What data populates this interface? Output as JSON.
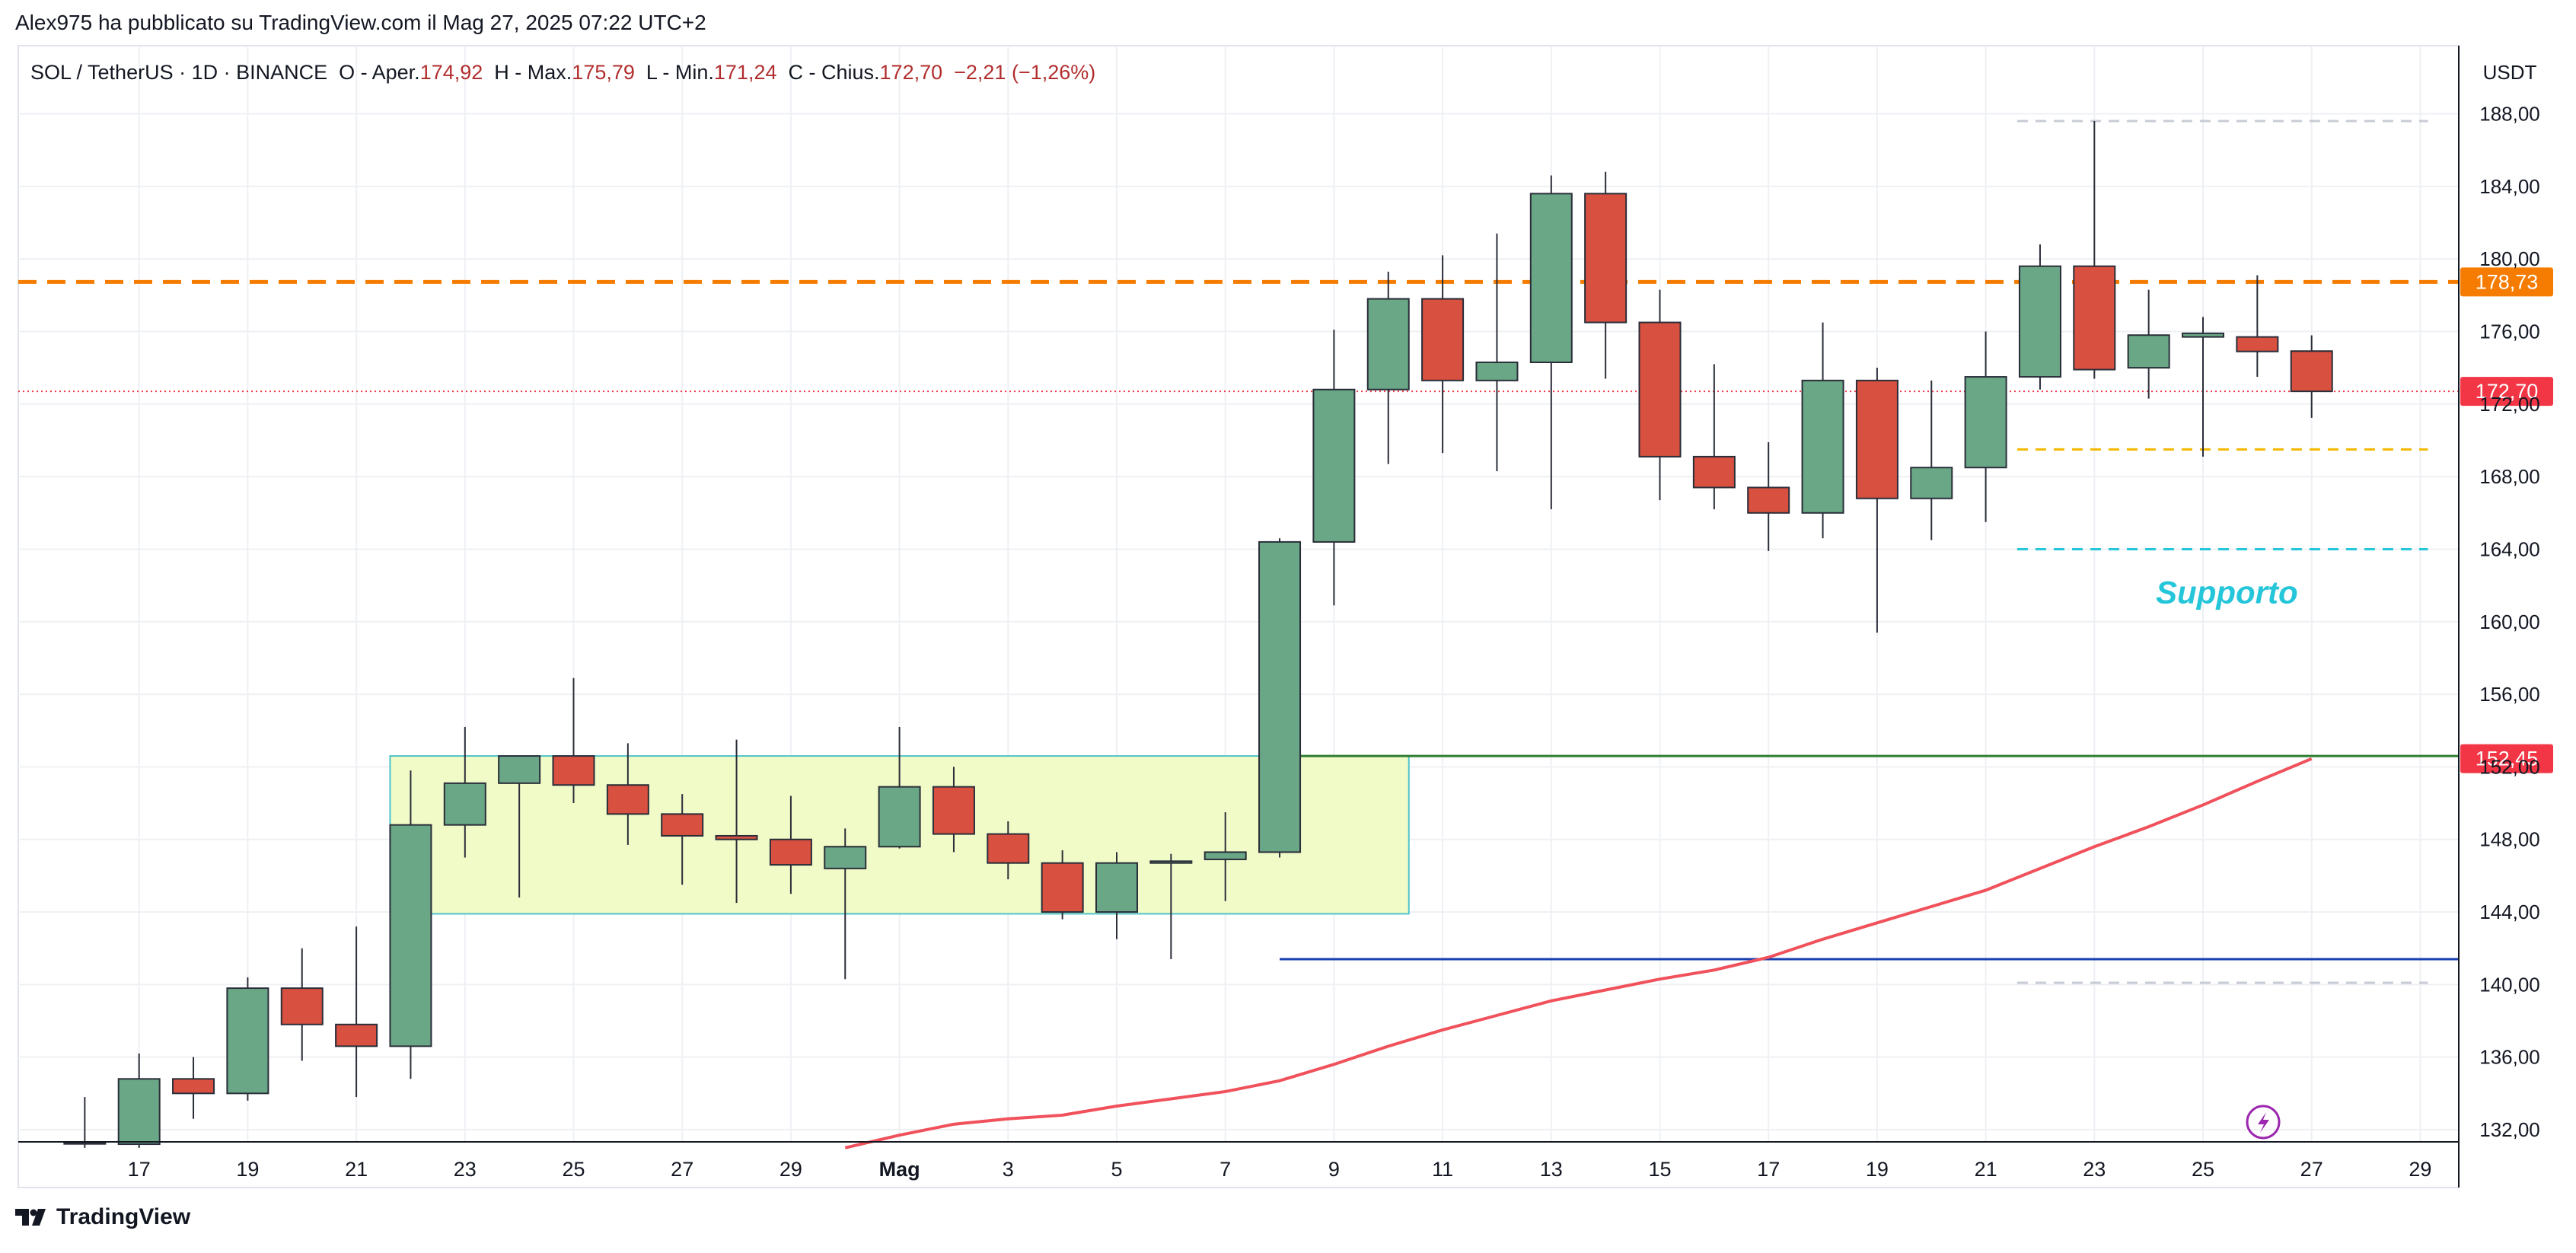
{
  "caption": "Alex975 ha pubblicato su TradingView.com il Mag 27, 2025 07:22 UTC+2",
  "legend": {
    "symbol": "SOL / TetherUS · 1D · BINANCE",
    "o_label": "O - Aper.",
    "o_value": "174,92",
    "h_label": "H - Max.",
    "h_value": "175,79",
    "l_label": "L - Min.",
    "l_value": "171,24",
    "c_label": "C - Chius.",
    "c_value": "172,70",
    "change": "−2,21 (−1,26%)"
  },
  "currency": "USDT",
  "brand": "TradingView",
  "colors": {
    "up": "#6aa786",
    "down": "#d85040",
    "resistance": "#f57c00",
    "last_price": "#f23645",
    "ma": "#f0515b",
    "support_text": "#26c6da",
    "blue_line": "#1a3fb0",
    "green_line": "#2e7d32",
    "range_box_fill": "#f1fbc8",
    "range_box_border": "#4fc3c9"
  },
  "chart_data": {
    "type": "candlestick",
    "ylim": [
      131,
      191
    ],
    "y_ticks": [
      "188,00",
      "184,00",
      "180,00",
      "176,00",
      "172,00",
      "168,00",
      "164,00",
      "160,00",
      "156,00",
      "152,00",
      "148,00",
      "144,00",
      "140,00",
      "136,00",
      "132,00"
    ],
    "x_ticks": [
      "17",
      "19",
      "21",
      "23",
      "25",
      "27",
      "29",
      "Mag",
      "3",
      "5",
      "7",
      "9",
      "11",
      "13",
      "15",
      "17",
      "19",
      "21",
      "23",
      "25",
      "27",
      "29"
    ],
    "candles": [
      {
        "date": "Apr 16",
        "o": 131.3,
        "h": 133.8,
        "l": 131.0,
        "c": 131.3
      },
      {
        "date": "Apr 17",
        "o": 131.2,
        "h": 136.2,
        "l": 131.0,
        "c": 134.8
      },
      {
        "date": "Apr 18",
        "o": 134.8,
        "h": 136.0,
        "l": 132.6,
        "c": 134.0
      },
      {
        "date": "Apr 19",
        "o": 134.0,
        "h": 140.4,
        "l": 133.6,
        "c": 139.8
      },
      {
        "date": "Apr 20",
        "o": 139.8,
        "h": 142.0,
        "l": 135.8,
        "c": 137.8
      },
      {
        "date": "Apr 21",
        "o": 137.8,
        "h": 143.2,
        "l": 133.8,
        "c": 136.6
      },
      {
        "date": "Apr 22",
        "o": 136.6,
        "h": 151.8,
        "l": 134.8,
        "c": 148.8
      },
      {
        "date": "Apr 23",
        "o": 148.8,
        "h": 154.2,
        "l": 147.0,
        "c": 151.1
      },
      {
        "date": "Apr 24",
        "o": 151.1,
        "h": 152.6,
        "l": 144.8,
        "c": 152.6
      },
      {
        "date": "Apr 25",
        "o": 152.6,
        "h": 156.9,
        "l": 150.0,
        "c": 151.0
      },
      {
        "date": "Apr 26",
        "o": 151.0,
        "h": 153.3,
        "l": 147.7,
        "c": 149.4
      },
      {
        "date": "Apr 27",
        "o": 149.4,
        "h": 150.5,
        "l": 145.5,
        "c": 148.2
      },
      {
        "date": "Apr 28",
        "o": 148.2,
        "h": 153.5,
        "l": 144.5,
        "c": 148.0
      },
      {
        "date": "Apr 29",
        "o": 148.0,
        "h": 150.4,
        "l": 145.0,
        "c": 146.6
      },
      {
        "date": "Apr 30",
        "o": 146.4,
        "h": 148.6,
        "l": 140.3,
        "c": 147.6
      },
      {
        "date": "May 01",
        "o": 147.6,
        "h": 154.2,
        "l": 147.5,
        "c": 150.9
      },
      {
        "date": "May 02",
        "o": 150.9,
        "h": 152.0,
        "l": 147.3,
        "c": 148.3
      },
      {
        "date": "May 03",
        "o": 148.3,
        "h": 149.0,
        "l": 145.8,
        "c": 146.7
      },
      {
        "date": "May 04",
        "o": 146.7,
        "h": 147.4,
        "l": 143.6,
        "c": 144.0
      },
      {
        "date": "May 05",
        "o": 144.0,
        "h": 147.3,
        "l": 142.5,
        "c": 146.7
      },
      {
        "date": "May 06",
        "o": 146.7,
        "h": 147.2,
        "l": 141.4,
        "c": 146.8
      },
      {
        "date": "May 07",
        "o": 146.9,
        "h": 149.5,
        "l": 144.6,
        "c": 147.3
      },
      {
        "date": "May 08",
        "o": 147.3,
        "h": 164.6,
        "l": 147.0,
        "c": 164.4
      },
      {
        "date": "May 09",
        "o": 164.4,
        "h": 176.1,
        "l": 160.9,
        "c": 172.8
      },
      {
        "date": "May 10",
        "o": 172.8,
        "h": 179.3,
        "l": 168.7,
        "c": 177.8
      },
      {
        "date": "May 11",
        "o": 177.8,
        "h": 180.2,
        "l": 169.3,
        "c": 173.3
      },
      {
        "date": "May 12",
        "o": 173.3,
        "h": 181.4,
        "l": 168.3,
        "c": 174.3
      },
      {
        "date": "May 13",
        "o": 174.3,
        "h": 184.6,
        "l": 166.2,
        "c": 183.6
      },
      {
        "date": "May 14",
        "o": 183.6,
        "h": 184.8,
        "l": 173.4,
        "c": 176.5
      },
      {
        "date": "May 15",
        "o": 176.5,
        "h": 178.3,
        "l": 166.7,
        "c": 169.1
      },
      {
        "date": "May 16",
        "o": 169.1,
        "h": 174.2,
        "l": 166.2,
        "c": 167.4
      },
      {
        "date": "May 17",
        "o": 167.4,
        "h": 169.9,
        "l": 163.9,
        "c": 166.0
      },
      {
        "date": "May 18",
        "o": 166.0,
        "h": 176.5,
        "l": 164.6,
        "c": 173.3
      },
      {
        "date": "May 19",
        "o": 173.3,
        "h": 174.0,
        "l": 159.4,
        "c": 166.8
      },
      {
        "date": "May 20",
        "o": 166.8,
        "h": 173.3,
        "l": 164.5,
        "c": 168.5
      },
      {
        "date": "May 21",
        "o": 168.5,
        "h": 176.0,
        "l": 165.5,
        "c": 173.5
      },
      {
        "date": "May 22",
        "o": 173.5,
        "h": 180.8,
        "l": 172.8,
        "c": 179.6
      },
      {
        "date": "May 23",
        "o": 179.6,
        "h": 187.6,
        "l": 173.4,
        "c": 173.9
      },
      {
        "date": "May 24",
        "o": 174.0,
        "h": 178.3,
        "l": 172.3,
        "c": 175.8
      },
      {
        "date": "May 25",
        "o": 175.7,
        "h": 176.8,
        "l": 169.1,
        "c": 175.9
      },
      {
        "date": "May 26",
        "o": 175.7,
        "h": 179.1,
        "l": 173.5,
        "c": 174.9
      },
      {
        "date": "May 27",
        "o": 174.92,
        "h": 175.79,
        "l": 171.24,
        "c": 172.7
      }
    ],
    "moving_average": [
      {
        "date": "Apr 30",
        "v": 131.0
      },
      {
        "date": "May 01",
        "v": 131.7
      },
      {
        "date": "May 02",
        "v": 132.3
      },
      {
        "date": "May 03",
        "v": 132.6
      },
      {
        "date": "May 04",
        "v": 132.8
      },
      {
        "date": "May 05",
        "v": 133.3
      },
      {
        "date": "May 06",
        "v": 133.7
      },
      {
        "date": "May 07",
        "v": 134.1
      },
      {
        "date": "May 08",
        "v": 134.7
      },
      {
        "date": "May 09",
        "v": 135.6
      },
      {
        "date": "May 10",
        "v": 136.6
      },
      {
        "date": "May 11",
        "v": 137.5
      },
      {
        "date": "May 12",
        "v": 138.3
      },
      {
        "date": "May 13",
        "v": 139.1
      },
      {
        "date": "May 14",
        "v": 139.7
      },
      {
        "date": "May 15",
        "v": 140.3
      },
      {
        "date": "May 16",
        "v": 140.8
      },
      {
        "date": "May 17",
        "v": 141.5
      },
      {
        "date": "May 18",
        "v": 142.5
      },
      {
        "date": "May 19",
        "v": 143.4
      },
      {
        "date": "May 20",
        "v": 144.3
      },
      {
        "date": "May 21",
        "v": 145.2
      },
      {
        "date": "May 22",
        "v": 146.4
      },
      {
        "date": "May 23",
        "v": 147.6
      },
      {
        "date": "May 24",
        "v": 148.7
      },
      {
        "date": "May 25",
        "v": 149.9
      },
      {
        "date": "May 26",
        "v": 151.2
      },
      {
        "date": "May 27",
        "v": 152.45
      }
    ],
    "horizontal_lines": [
      {
        "name": "resistance",
        "y": 178.73,
        "style": "dashed",
        "label": "178,73"
      },
      {
        "name": "last-price",
        "y": 172.7,
        "style": "dotted",
        "label": "172,70"
      },
      {
        "name": "ma-level",
        "y": 152.45,
        "style": "solid",
        "label": "152,45"
      },
      {
        "name": "yellow-dash",
        "y": 169.5,
        "style": "dashed",
        "from": "May 22",
        "to": "May 29"
      },
      {
        "name": "cyan-dash",
        "y": 164.0,
        "style": "dashed",
        "from": "May 22",
        "to": "May 29"
      },
      {
        "name": "gray-top",
        "y": 187.6,
        "style": "dashed",
        "from": "May 22",
        "to": "May 29"
      },
      {
        "name": "gray-bottom",
        "y": 140.1,
        "style": "dashed",
        "from": "May 22",
        "to": "May 29"
      },
      {
        "name": "blue",
        "y": 141.4,
        "style": "solid",
        "from": "May 08",
        "to": "end"
      },
      {
        "name": "green",
        "y": 152.6,
        "style": "solid",
        "from": "May 08",
        "to": "end"
      }
    ],
    "range_box": {
      "from": "Apr 22",
      "to": "May 10",
      "top": 152.6,
      "bottom": 143.9
    },
    "annotation": {
      "text": "Supporto",
      "date": "May 26",
      "y": 161.6
    }
  }
}
